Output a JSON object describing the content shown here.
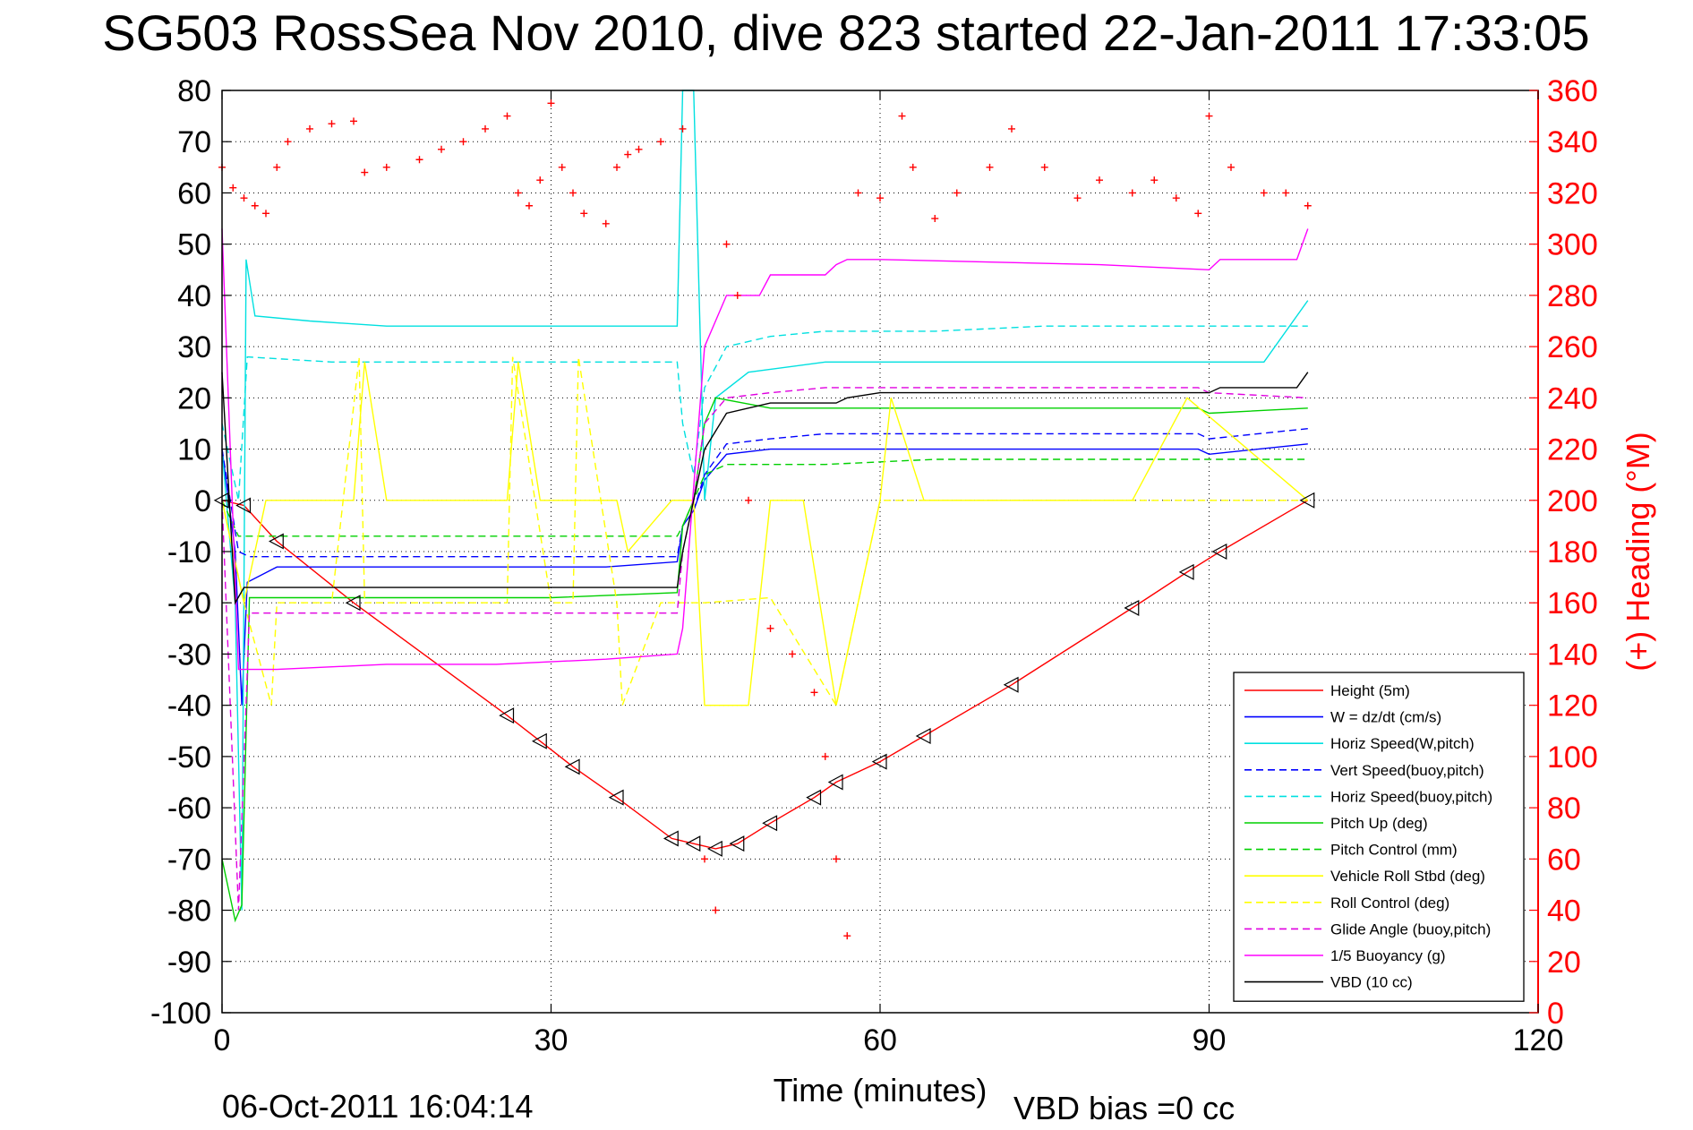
{
  "chart_data": {
    "type": "line",
    "title": "SG503 RossSea Nov 2010, dive 823 started 22-Jan-2011 17:33:05",
    "xlabel": "Time (minutes)",
    "ylabel_right": "(+) Heading (°M)",
    "xlim": [
      0,
      120
    ],
    "ylim": [
      -100,
      80
    ],
    "ylim_right": [
      0,
      360
    ],
    "x_ticks": [
      0,
      30,
      60,
      90,
      120
    ],
    "y_ticks": [
      80,
      70,
      60,
      50,
      40,
      30,
      20,
      10,
      0,
      -10,
      -20,
      -30,
      -40,
      -50,
      -60,
      -70,
      -80,
      -90,
      -100
    ],
    "y_ticks_right": [
      360,
      340,
      320,
      300,
      280,
      260,
      240,
      220,
      200,
      180,
      160,
      140,
      120,
      100,
      80,
      60,
      40,
      20,
      0
    ],
    "grid": true,
    "legend_position": "bottom-right",
    "footer_left": "06-Oct-2011 16:04:14",
    "footer_right": "VBD bias =0 cc",
    "series": [
      {
        "name": "Height (5m)",
        "color": "#ff0000",
        "style": "solid",
        "x": [
          0,
          2,
          5,
          12,
          26,
          29,
          32,
          36,
          41,
          43,
          45,
          47,
          50,
          54,
          56,
          60,
          64,
          72,
          83,
          88,
          91,
          99
        ],
        "y": [
          0,
          -1,
          -8,
          -20,
          -42,
          -47,
          -52,
          -58,
          -66,
          -67,
          -68,
          -67,
          -63,
          -58,
          -55,
          -51,
          -46,
          -36,
          -21,
          -14,
          -10,
          0
        ]
      },
      {
        "name": "W = dz/dt (cm/s)",
        "color": "#0000ff",
        "style": "solid",
        "x": [
          0,
          1.2,
          1.8,
          2.3,
          5,
          15,
          25,
          35,
          41.5,
          42,
          43,
          44,
          46,
          50,
          55,
          65,
          75,
          85,
          89,
          90,
          99
        ],
        "y": [
          10,
          -10,
          -40,
          -16,
          -13,
          -13,
          -13,
          -13,
          -12,
          -5,
          -2,
          4,
          9,
          10,
          10,
          10,
          10,
          10,
          10,
          9,
          11
        ]
      },
      {
        "name": "Horiz Speed(W,pitch)",
        "color": "#00e0e0",
        "style": "solid",
        "x": [
          0,
          1.2,
          1.8,
          2.2,
          3,
          8,
          15,
          25,
          35,
          41.5,
          42,
          42.5,
          43,
          44,
          45,
          48,
          55,
          65,
          75,
          85,
          89,
          95,
          99
        ],
        "y": [
          10,
          -20,
          -80,
          47,
          36,
          35,
          34,
          34,
          34,
          34,
          80,
          80,
          80,
          0,
          20,
          25,
          27,
          27,
          27,
          27,
          27,
          27,
          39
        ]
      },
      {
        "name": "Vert Speed(buoy,pitch)",
        "color": "#0000ff",
        "style": "dashed",
        "x": [
          0,
          1.5,
          2.5,
          10,
          20,
          30,
          41.5,
          42,
          43,
          44,
          46,
          50,
          55,
          65,
          75,
          85,
          89,
          90,
          99
        ],
        "y": [
          10,
          -10,
          -11,
          -11,
          -11,
          -11,
          -11,
          -5,
          -2,
          5,
          11,
          12,
          13,
          13,
          13,
          13,
          13,
          12,
          14
        ]
      },
      {
        "name": "Horiz Speed(buoy,pitch)",
        "color": "#00e0e0",
        "style": "dashed",
        "x": [
          0,
          1.5,
          2.3,
          10,
          20,
          30,
          41.5,
          42,
          43,
          44,
          46,
          50,
          55,
          65,
          75,
          85,
          89,
          90,
          99
        ],
        "y": [
          15,
          0,
          28,
          27,
          27,
          27,
          27,
          15,
          5,
          22,
          30,
          32,
          33,
          33,
          34,
          34,
          34,
          34,
          34
        ]
      },
      {
        "name": "Pitch Up (deg)",
        "color": "#00d000",
        "style": "solid",
        "x": [
          0,
          1.2,
          1.8,
          2.5,
          10,
          20,
          30,
          41.5,
          42,
          43,
          44,
          45,
          50,
          55,
          65,
          75,
          85,
          89,
          90,
          99
        ],
        "y": [
          -70,
          -82,
          -79,
          -19,
          -19,
          -19,
          -19,
          -18,
          -5,
          0,
          15,
          20,
          18,
          18,
          18,
          18,
          18,
          18,
          17,
          18
        ]
      },
      {
        "name": "Pitch Control (mm)",
        "color": "#00d000",
        "style": "dashed",
        "x": [
          0,
          1.5,
          2.5,
          20,
          41.5,
          42,
          44,
          46,
          50,
          55,
          65,
          75,
          85,
          89,
          99
        ],
        "y": [
          0,
          -7,
          -7,
          -7,
          -7,
          -5,
          5,
          7,
          7,
          7,
          8,
          8,
          8,
          8,
          8
        ]
      },
      {
        "name": "Vehicle Roll Stbd (deg)",
        "color": "#ffff00",
        "style": "solid",
        "x": [
          0,
          2,
          4,
          5,
          8,
          12,
          13,
          15,
          20,
          26,
          27,
          29,
          32,
          33,
          36,
          37,
          41,
          43,
          44,
          48,
          50,
          53,
          56,
          60,
          61,
          64,
          72,
          83,
          88,
          99
        ],
        "y": [
          0,
          -20,
          0,
          0,
          0,
          0,
          27,
          0,
          0,
          0,
          27,
          0,
          0,
          0,
          0,
          -10,
          0,
          0,
          -40,
          -40,
          0,
          0,
          -40,
          0,
          20,
          0,
          0,
          0,
          20,
          0
        ]
      },
      {
        "name": "Roll Control (deg)",
        "color": "#ffff00",
        "style": "dashed",
        "x": [
          0,
          2,
          4.5,
          5,
          10,
          12.5,
          13,
          20,
          26,
          26.5,
          30,
          32,
          32.5,
          36,
          36.5,
          40,
          44,
          50,
          56,
          60,
          99
        ],
        "y": [
          0,
          -20,
          -40,
          -20,
          -20,
          28,
          -20,
          -20,
          -20,
          28,
          -20,
          -20,
          28,
          -20,
          -40,
          -20,
          -20,
          -19,
          -40,
          0,
          0
        ]
      },
      {
        "name": "Glide Angle (buoy,pitch)",
        "color": "#e000e0",
        "style": "dashed",
        "x": [
          0,
          1.5,
          2.5,
          10,
          20,
          30,
          41.5,
          42,
          43,
          44,
          46,
          50,
          55,
          65,
          75,
          85,
          89,
          90,
          99
        ],
        "y": [
          0,
          -80,
          -22,
          -22,
          -22,
          -22,
          -22,
          -10,
          0,
          15,
          20,
          21,
          22,
          22,
          22,
          22,
          22,
          21,
          20
        ]
      },
      {
        "name": "1/5 Buoyancy (g)",
        "color": "#ff00ff",
        "style": "solid",
        "x": [
          0,
          1.5,
          2,
          5,
          15,
          25,
          35,
          41.5,
          42,
          44,
          46,
          49,
          50,
          55,
          56,
          57,
          60,
          80,
          90,
          91,
          98,
          99
        ],
        "y": [
          53,
          -33,
          -33,
          -33,
          -32,
          -32,
          -31,
          -30,
          -25,
          30,
          40,
          40,
          44,
          44,
          46,
          47,
          47,
          46,
          45,
          47,
          47,
          53
        ]
      },
      {
        "name": "VBD (10 cc)",
        "color": "#000000",
        "style": "solid",
        "x": [
          0,
          1.2,
          2,
          5,
          15,
          25,
          35,
          41.5,
          42,
          44,
          46,
          50,
          56,
          57,
          60,
          90,
          91,
          98,
          99
        ],
        "y": [
          25,
          -20,
          -17,
          -17,
          -17,
          -17,
          -17,
          -17,
          -10,
          10,
          17,
          19,
          19,
          20,
          21,
          21,
          22,
          22,
          25
        ]
      },
      {
        "name": "(+) Heading",
        "color": "#ff0000",
        "style": "markers",
        "axis": "right",
        "x": [
          0,
          1,
          2,
          3,
          4,
          5,
          6,
          8,
          10,
          12,
          13,
          15,
          18,
          20,
          22,
          24,
          26,
          27,
          28,
          29,
          30,
          31,
          32,
          33,
          35,
          36,
          37,
          38,
          40,
          42,
          44,
          45,
          46,
          47,
          48,
          50,
          52,
          54,
          55,
          56,
          57,
          58,
          60,
          62,
          63,
          65,
          67,
          70,
          72,
          75,
          78,
          80,
          83,
          85,
          87,
          89,
          90,
          92,
          95,
          97,
          99
        ],
        "y": [
          330,
          322,
          318,
          315,
          312,
          330,
          340,
          345,
          347,
          348,
          328,
          330,
          333,
          337,
          340,
          345,
          350,
          320,
          315,
          325,
          355,
          330,
          320,
          312,
          308,
          330,
          335,
          337,
          340,
          345,
          60,
          40,
          300,
          280,
          200,
          150,
          140,
          125,
          100,
          60,
          30,
          320,
          318,
          350,
          330,
          310,
          320,
          330,
          345,
          330,
          318,
          325,
          320,
          325,
          318,
          312,
          350,
          330,
          320,
          320,
          315
        ]
      }
    ]
  }
}
